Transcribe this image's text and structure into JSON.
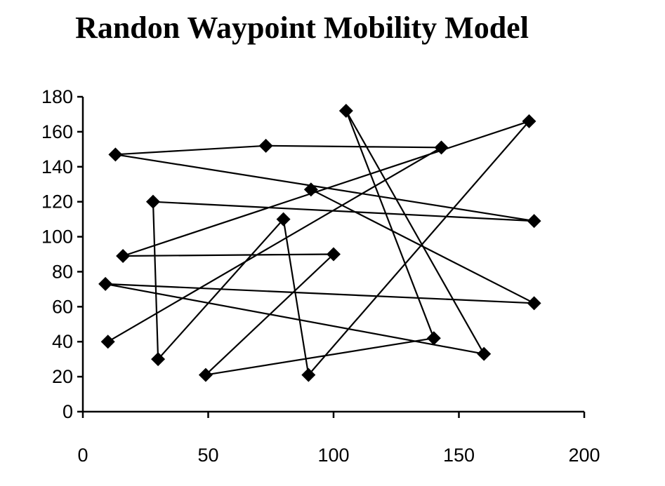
{
  "chart_data": {
    "type": "line",
    "title": "Randon Waypoint Mobility Model",
    "xlabel": "",
    "ylabel": "",
    "xlim": [
      0,
      200
    ],
    "ylim": [
      0,
      180
    ],
    "xticks": [
      "0",
      "50",
      "100",
      "150",
      "200"
    ],
    "yticks": [
      "0",
      "20",
      "40",
      "60",
      "80",
      "100",
      "120",
      "140",
      "160",
      "180"
    ],
    "grid": false,
    "legend": "none",
    "marker": "diamond",
    "line_color": "#000000",
    "points": [
      {
        "x": 10,
        "y": 40
      },
      {
        "x": 143,
        "y": 151
      },
      {
        "x": 73,
        "y": 152
      },
      {
        "x": 13,
        "y": 147
      },
      {
        "x": 180,
        "y": 109
      },
      {
        "x": 28,
        "y": 120
      },
      {
        "x": 30,
        "y": 30
      },
      {
        "x": 80,
        "y": 110
      },
      {
        "x": 90,
        "y": 21
      },
      {
        "x": 178,
        "y": 166
      },
      {
        "x": 16,
        "y": 89
      },
      {
        "x": 100,
        "y": 90
      },
      {
        "x": 49,
        "y": 21
      },
      {
        "x": 140,
        "y": 42
      },
      {
        "x": 105,
        "y": 172
      },
      {
        "x": 160,
        "y": 33
      },
      {
        "x": 9,
        "y": 73
      },
      {
        "x": 180,
        "y": 62
      },
      {
        "x": 91,
        "y": 127
      }
    ]
  }
}
